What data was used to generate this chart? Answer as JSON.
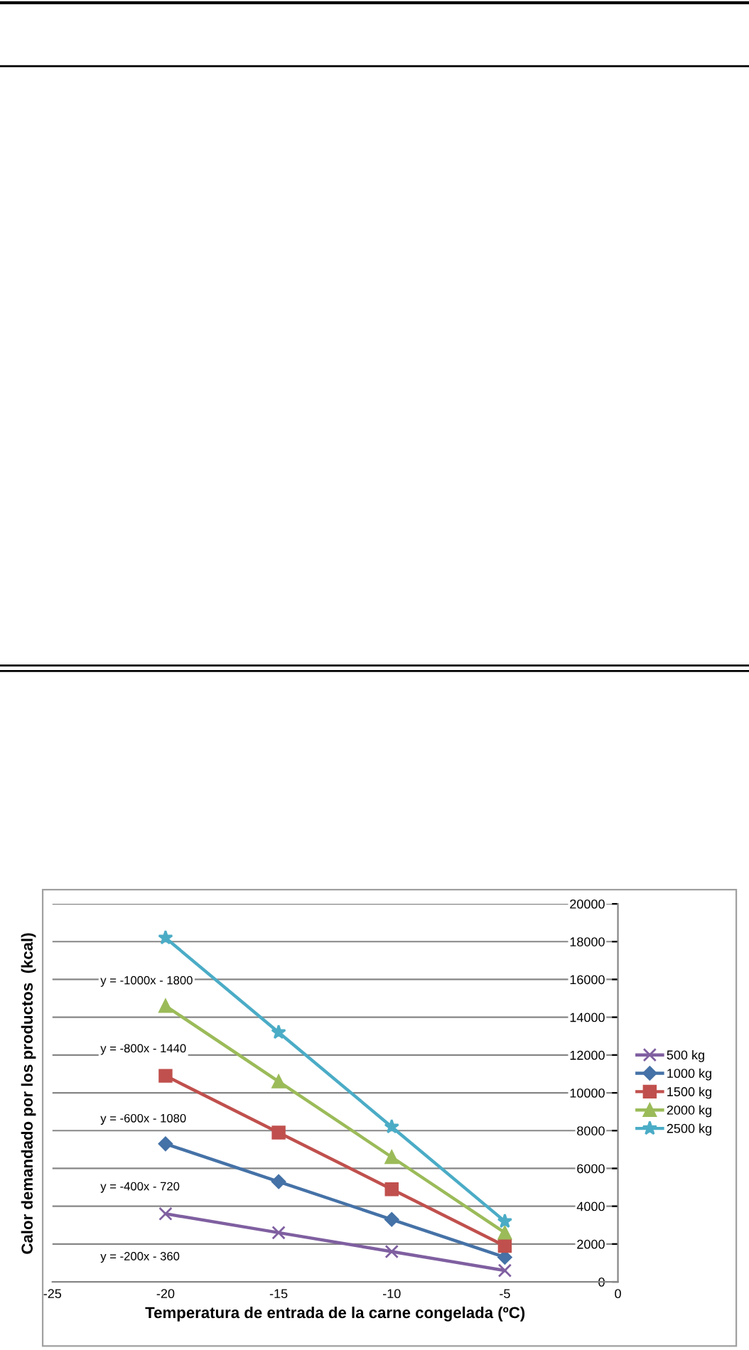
{
  "chart_data": {
    "type": "line",
    "xlabel": "Temperatura de entrada de la carne congelada (ºC)",
    "ylabel": "Calor demandado por los productos  (kcal)",
    "x": [
      -20,
      -15,
      -10,
      -5
    ],
    "series": [
      {
        "name": "500 kg",
        "color": "#7f5fa0",
        "marker": "cross",
        "values": [
          3600,
          2600,
          1600,
          600
        ]
      },
      {
        "name": "1000 kg",
        "color": "#4572a7",
        "marker": "diamond",
        "values": [
          7300,
          5300,
          3300,
          1300
        ]
      },
      {
        "name": "1500 kg",
        "color": "#c0504d",
        "marker": "square",
        "values": [
          10900,
          7900,
          4900,
          1900
        ]
      },
      {
        "name": "2000 kg",
        "color": "#9bbb59",
        "marker": "triangle",
        "values": [
          14600,
          10600,
          6600,
          2600
        ]
      },
      {
        "name": "2500 kg",
        "color": "#4bacc6",
        "marker": "star",
        "values": [
          18200,
          13200,
          8200,
          3200
        ]
      }
    ],
    "annotations": [
      "y = -200x - 360",
      "y = -400x - 720",
      "y = -600x - 1080",
      "y = -800x - 1440",
      "y = -1000x - 1800"
    ],
    "xlim": [
      -25,
      0
    ],
    "xticks": [
      -25,
      -20,
      -15,
      -10,
      -5,
      0
    ],
    "ylim": [
      0,
      20000
    ],
    "yticks": [
      0,
      2000,
      4000,
      6000,
      8000,
      10000,
      12000,
      14000,
      16000,
      18000,
      20000
    ],
    "grid": "y",
    "legend": "right"
  }
}
